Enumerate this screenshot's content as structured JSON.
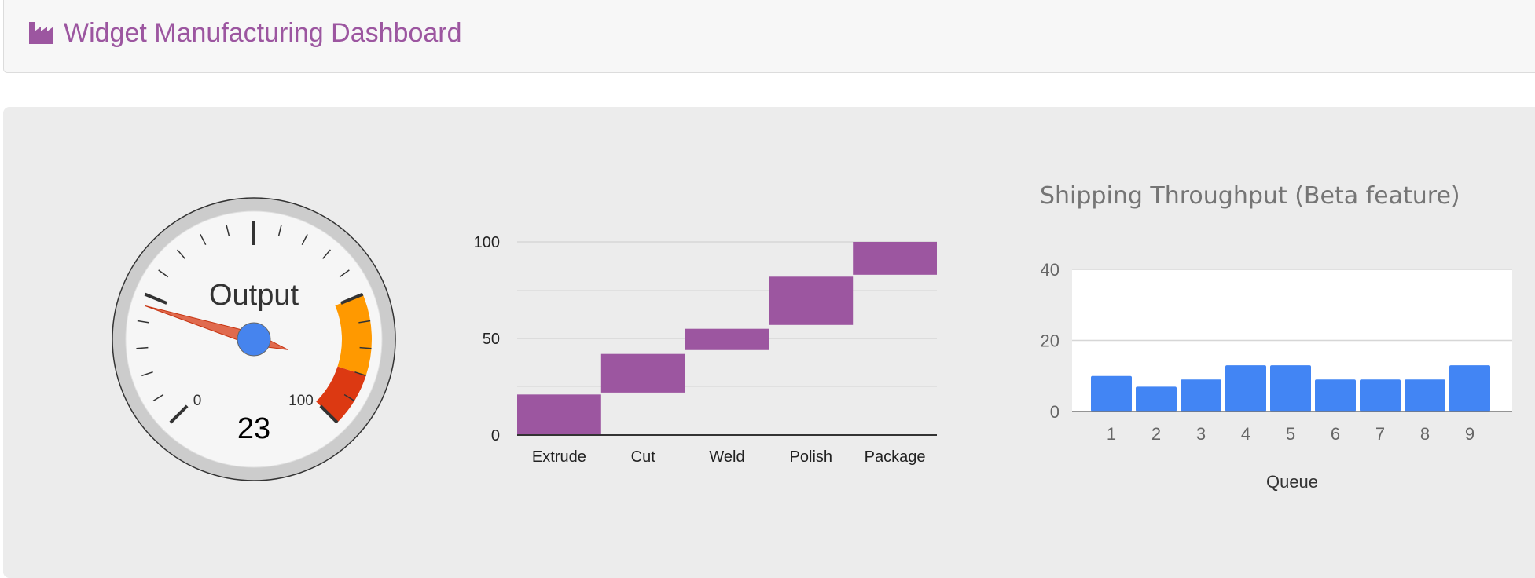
{
  "navbar": {
    "title": "Widget Manufacturing Dashboard",
    "icon": "industry-icon",
    "brand_color": "#9c56a0"
  },
  "gauge": {
    "label": "Output",
    "value": 23,
    "min_label": "0",
    "max_label": "100",
    "min": 0,
    "max": 100,
    "yellow_zone": [
      75,
      90
    ],
    "red_zone": [
      90,
      100
    ],
    "yellow_color": "#ff9900",
    "red_color": "#dc3912",
    "needle_color": "#e06a4e",
    "hub_color": "#4684ee"
  },
  "chart_data": [
    {
      "type": "bar",
      "subtype": "waterfall",
      "categories": [
        "Extrude",
        "Cut",
        "Weld",
        "Polish",
        "Package"
      ],
      "ranges": [
        [
          0,
          21
        ],
        [
          22,
          42
        ],
        [
          44,
          55
        ],
        [
          57,
          82
        ],
        [
          83,
          100
        ]
      ],
      "y_ticks": [
        "0",
        "50",
        "100"
      ],
      "ylim": [
        0,
        100
      ],
      "color": "#9c56a0",
      "grid": true
    },
    {
      "type": "bar",
      "title": "Shipping Throughput (Beta feature)",
      "xlabel": "Queue",
      "ylabel": "",
      "categories": [
        "1",
        "2",
        "3",
        "4",
        "5",
        "6",
        "7",
        "8",
        "9"
      ],
      "values": [
        10,
        7,
        9,
        13,
        13,
        9,
        9,
        9,
        13
      ],
      "y_ticks": [
        "0",
        "20",
        "40"
      ],
      "ylim": [
        0,
        40
      ],
      "color": "#4285f4",
      "grid": true
    }
  ]
}
